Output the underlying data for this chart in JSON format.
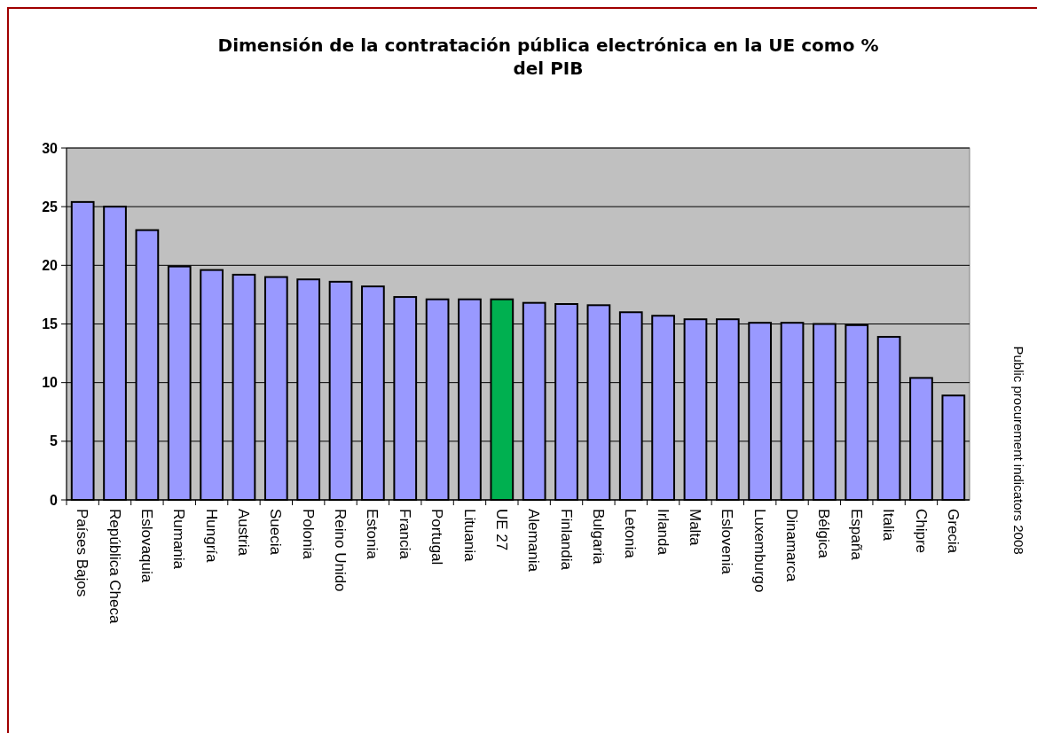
{
  "chart_data": {
    "type": "bar",
    "title": "Dimensión de la contratación pública electrónica en la UE como % del PIB",
    "categories": [
      "Países Bajos",
      "República Checa",
      "Eslovaquia",
      "Rumania",
      "Hungría",
      "Austria",
      "Suecia",
      "Polonia",
      "Reino Unido",
      "Estonia",
      "Francia",
      "Portugal",
      "Lituania",
      "UE 27",
      "Alemania",
      "Finlandia",
      "Bulgaria",
      "Letonia",
      "Irlanda",
      "Malta",
      "Eslovenia",
      "Luxemburgo",
      "Dinamarca",
      "Bélgica",
      "España",
      "Italia",
      "Chipre",
      "Grecia"
    ],
    "values": [
      25.4,
      25.0,
      23.0,
      19.9,
      19.6,
      19.2,
      19.0,
      18.8,
      18.6,
      18.2,
      17.3,
      17.1,
      17.1,
      17.1,
      16.8,
      16.7,
      16.6,
      16.0,
      15.7,
      15.4,
      15.4,
      15.1,
      15.1,
      15.0,
      14.9,
      13.9,
      10.4,
      8.9
    ],
    "colors": [
      "#9999ff",
      "#9999ff",
      "#9999ff",
      "#9999ff",
      "#9999ff",
      "#9999ff",
      "#9999ff",
      "#9999ff",
      "#9999ff",
      "#9999ff",
      "#9999ff",
      "#9999ff",
      "#9999ff",
      "#00b050",
      "#9999ff",
      "#9999ff",
      "#9999ff",
      "#9999ff",
      "#9999ff",
      "#9999ff",
      "#9999ff",
      "#9999ff",
      "#9999ff",
      "#9999ff",
      "#9999ff",
      "#9999ff",
      "#9999ff",
      "#9999ff"
    ],
    "ylim": [
      0,
      30
    ],
    "yticks": [
      0,
      5,
      10,
      15,
      20,
      25,
      30
    ],
    "grid": "y",
    "annotations": [
      "Public procurement indicators 2008"
    ]
  }
}
